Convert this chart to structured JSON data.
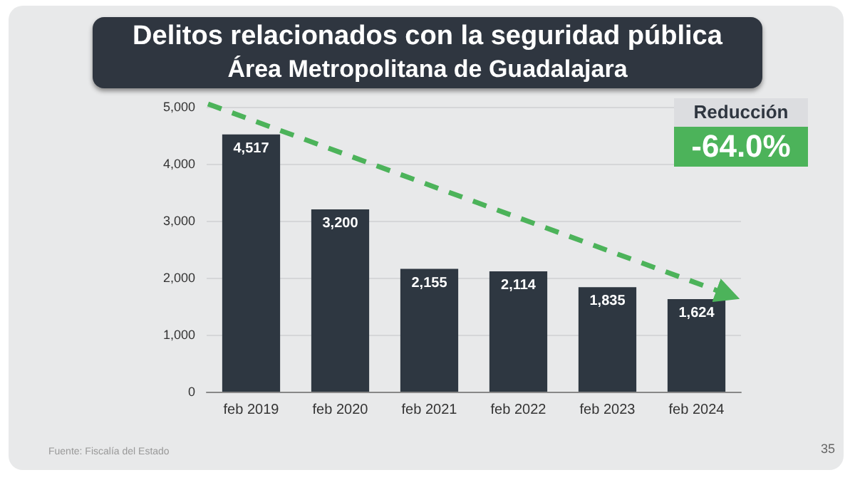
{
  "chart_data": {
    "type": "bar",
    "title": "Delitos relacionados con la seguridad pública",
    "subtitle": "Área Metropolitana de Guadalajara",
    "categories": [
      "feb 2019",
      "feb 2020",
      "feb 2021",
      "feb 2022",
      "feb 2023",
      "feb 2024"
    ],
    "values": [
      4517,
      3200,
      2155,
      2114,
      1835,
      1624
    ],
    "color": "#2e3741",
    "ylim": [
      0,
      5000
    ],
    "yticks": [
      {
        "value": 0,
        "label": "0"
      },
      {
        "value": 1000,
        "label": "1,000"
      },
      {
        "value": 2000,
        "label": "2,000"
      },
      {
        "value": 3000,
        "label": "3,000"
      },
      {
        "value": 4000,
        "label": "4,000"
      },
      {
        "value": 5000,
        "label": "5,000"
      }
    ],
    "grid": "y",
    "value_labels": [
      "4,517",
      "3,200",
      "2,155",
      "2,114",
      "1,835",
      "1,624"
    ],
    "annotations": [
      "Reducción",
      "-64.0%",
      "Fuente: Fiscalía del Estado",
      "35"
    ]
  }
}
